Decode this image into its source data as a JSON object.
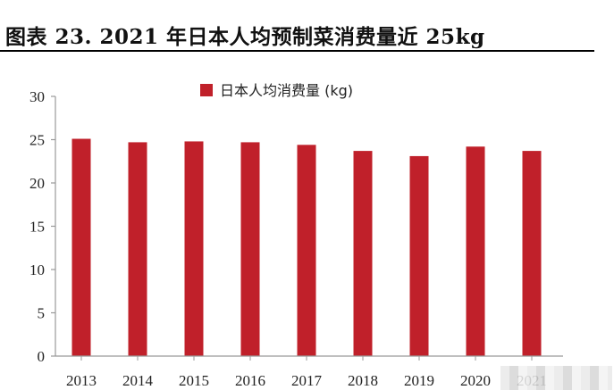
{
  "figure_title": "图表 23. 2021 年日本人均预制菜消费量近 25kg",
  "chart_data": {
    "type": "bar",
    "categories": [
      "2013",
      "2014",
      "2015",
      "2016",
      "2017",
      "2018",
      "2019",
      "2020",
      "2021"
    ],
    "series": [
      {
        "name": "日本人均消费量 (kg)",
        "values": [
          25.1,
          24.7,
          24.8,
          24.7,
          24.4,
          23.7,
          23.1,
          24.2,
          23.7
        ]
      }
    ],
    "title": "",
    "xlabel": "",
    "ylabel": "",
    "ylim": [
      0,
      30
    ],
    "yticks": [
      0,
      5,
      10,
      15,
      20,
      25,
      30
    ],
    "legend_position": "top-center",
    "grid": false,
    "colors": {
      "bar": "#C0202A",
      "axis": "#999999"
    }
  }
}
